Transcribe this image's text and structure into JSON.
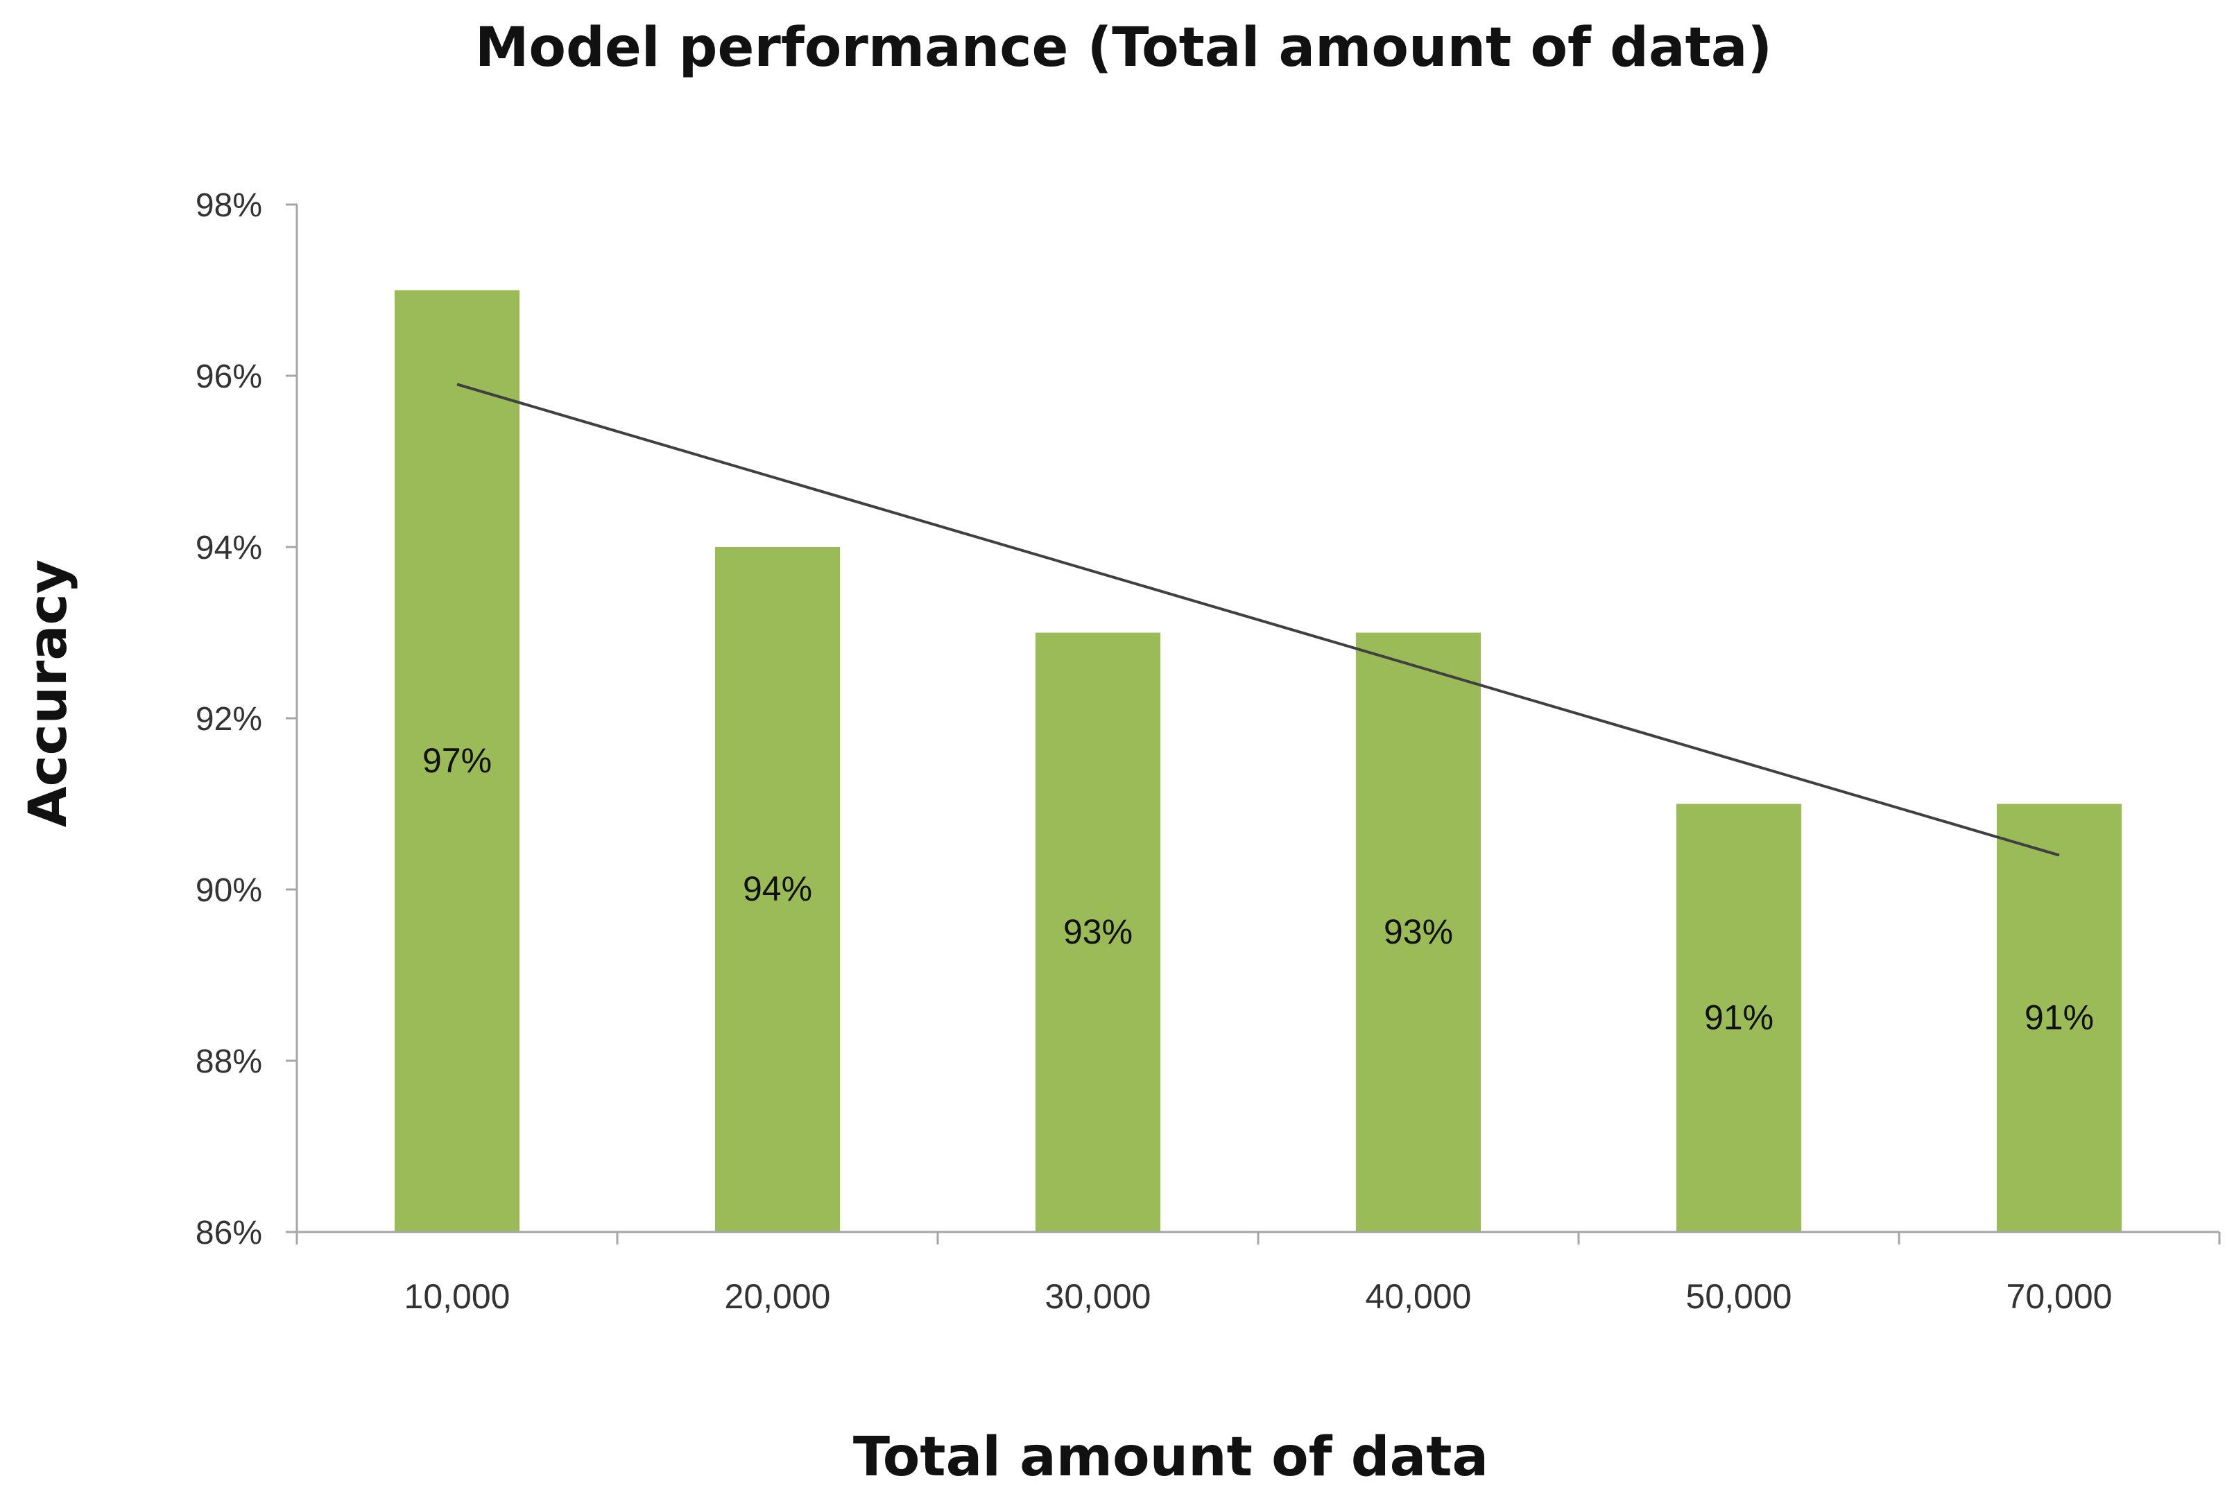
{
  "chart_data": {
    "type": "bar",
    "title": "Model performance (Total amount of data)",
    "xlabel": "Total amount of data",
    "ylabel": "Accuracy",
    "categories": [
      "10,000",
      "20,000",
      "30,000",
      "40,000",
      "50,000",
      "70,000"
    ],
    "values": [
      97,
      94,
      93,
      93,
      91,
      91
    ],
    "data_labels": [
      "97%",
      "94%",
      "93%",
      "93%",
      "91%",
      "91%"
    ],
    "ylim": [
      86,
      98
    ],
    "y_ticks": [
      86,
      88,
      90,
      92,
      94,
      96,
      98
    ],
    "y_tick_labels": [
      "86%",
      "88%",
      "90%",
      "92%",
      "94%",
      "96%",
      "98%"
    ],
    "trendline": {
      "type": "linear",
      "start": 95.9,
      "end": 90.4
    },
    "grid": false,
    "legend": "none",
    "colors": {
      "bar": "#9bbb59",
      "trendline": "#404040",
      "axis": "#a6a6a6"
    }
  }
}
